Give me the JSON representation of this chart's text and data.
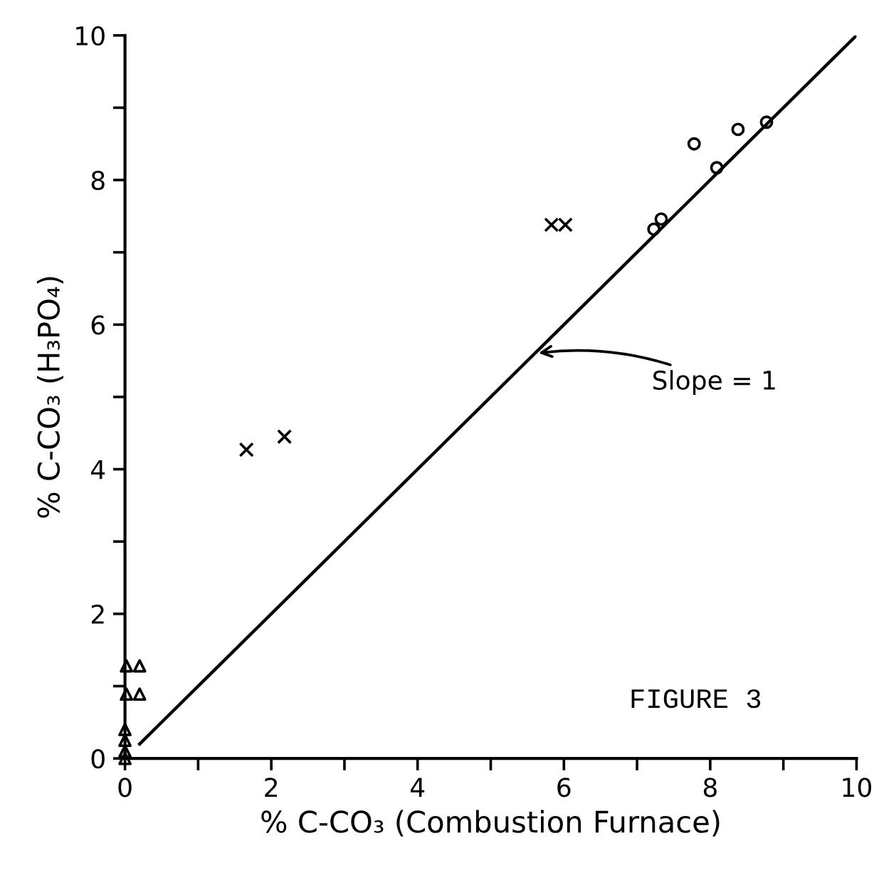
{
  "chart_data": {
    "type": "scatter",
    "xlabel": "% C-CO₃ (Combustion Furnace)",
    "ylabel": "% C-CO₃ (H₃PO₄)",
    "xlim": [
      0,
      10
    ],
    "ylim": [
      0,
      10
    ],
    "xticks": [
      0,
      {
        "value": 1,
        "label": null
      },
      2,
      {
        "value": 3,
        "label": null
      },
      4,
      {
        "value": 5,
        "label": null
      },
      6,
      {
        "value": 7,
        "label": null
      },
      8,
      {
        "value": 9,
        "label": null
      },
      10
    ],
    "yticks": [
      0,
      {
        "value": 1,
        "label": null
      },
      2,
      {
        "value": 3,
        "label": null
      },
      4,
      {
        "value": 5,
        "label": null
      },
      6,
      {
        "value": 7,
        "label": null
      },
      8,
      {
        "value": 9,
        "label": null
      },
      10
    ],
    "grid": false,
    "series": [
      {
        "marker": "triangle",
        "color": "#000000",
        "x": [
          0.02,
          0.2,
          0.02,
          0.2,
          0,
          0,
          0,
          0
        ],
        "values": [
          1.28,
          1.28,
          0.89,
          0.89,
          0.4,
          0.25,
          0.1,
          0
        ]
      },
      {
        "marker": "cross",
        "color": "#000000",
        "x": [
          1.66,
          2.18,
          5.83,
          6.02
        ],
        "values": [
          4.27,
          4.45,
          7.38,
          7.38
        ]
      },
      {
        "marker": "circle",
        "color": "#000000",
        "x": [
          7.23,
          7.33,
          7.78,
          8.09,
          8.38,
          8.77
        ],
        "values": [
          7.32,
          7.46,
          8.5,
          8.17,
          8.7,
          8.8
        ]
      },
      {
        "type": "line",
        "color": "#000000",
        "line_style": "solid",
        "x": [
          0.2,
          10
        ],
        "values": [
          0.2,
          10
        ]
      }
    ],
    "annotations": [
      {
        "text": "Slope = 1",
        "x": 5.6,
        "y": 5.6
      },
      "FIGURE 3"
    ]
  }
}
